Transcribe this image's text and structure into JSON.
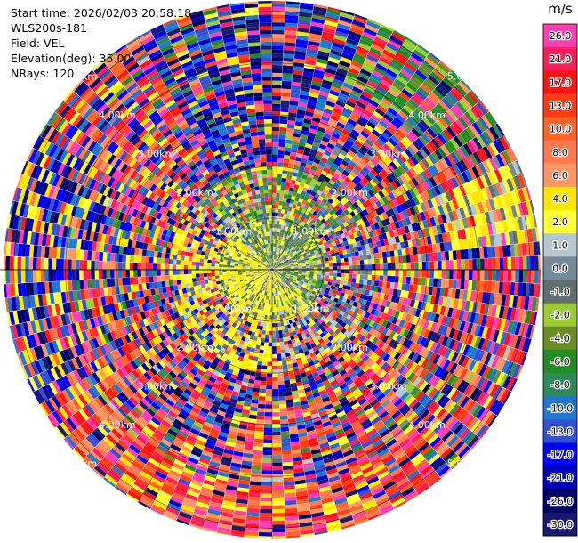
{
  "header": {
    "start_time": "Start time: 2026/02/03 20:58:18",
    "instrument": "WLS200s-181",
    "field": "Field: VEL",
    "elevation": "Elevation(deg): 35.00",
    "nrays": "NRays: 120"
  },
  "chart_data": {
    "type": "heatmap",
    "subtype": "ppi-polar",
    "field": "VEL",
    "units": "m/s",
    "nrays": 120,
    "range_rings_km": [
      {
        "value": 1,
        "label": "1.00km"
      },
      {
        "value": 2,
        "label": "2.00km"
      },
      {
        "value": 3,
        "label": "3.00km"
      },
      {
        "value": 4,
        "label": "4.00km"
      },
      {
        "value": 5,
        "label": "5.00km"
      }
    ],
    "max_range_km": 5.2,
    "colorbar": {
      "title": "m/s",
      "tick_labels": [
        "26.0",
        "21.0",
        "17.0",
        "13.0",
        "10.0",
        "8.0",
        "6.0",
        "4.0",
        "2.0",
        "1.0",
        "0.0",
        "-1.0",
        "-2.0",
        "-4.0",
        "-6.0",
        "-8.0",
        "-10.0",
        "-13.0",
        "-17.0",
        "-21.0",
        "-26.0",
        "-30.0"
      ],
      "colors": [
        "#ff3cb4",
        "#ff1e5a",
        "#ff1414",
        "#ff3c14",
        "#ff6428",
        "#ff7850",
        "#ff9664",
        "#ffe600",
        "#ffff32",
        "#b4c8d2",
        "#778899",
        "#5f6f6f",
        "#9acd32",
        "#6b8e23",
        "#228b22",
        "#2e8b57",
        "#1e78d2",
        "#3250d2",
        "#0000ff",
        "#0000b4",
        "#000064",
        "#191970"
      ]
    }
  }
}
